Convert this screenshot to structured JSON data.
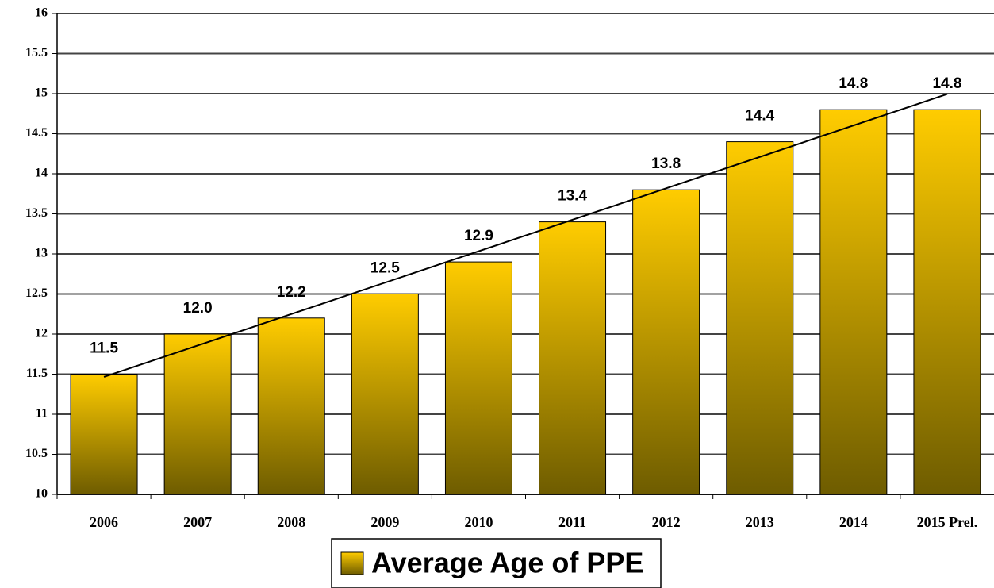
{
  "chart_data": {
    "type": "bar",
    "categories": [
      "2006",
      "2007",
      "2008",
      "2009",
      "2010",
      "2011",
      "2012",
      "2013",
      "2014",
      "2015 Prel."
    ],
    "series": [
      {
        "name": "Average Age of PPE",
        "color": "#ffcc00",
        "values": [
          11.5,
          12.0,
          12.2,
          12.5,
          12.9,
          13.4,
          13.8,
          14.4,
          14.8,
          14.8
        ],
        "value_labels": [
          "11.5",
          "12.0",
          "12.2",
          "12.5",
          "12.9",
          "13.4",
          "13.8",
          "14.4",
          "14.8",
          "14.8"
        ]
      }
    ],
    "ylim": [
      10,
      16
    ],
    "yticks": [
      10,
      10.5,
      11,
      11.5,
      12,
      12.5,
      13,
      13.5,
      14,
      14.5,
      15,
      15.5,
      16
    ],
    "grid": true,
    "trendline": true,
    "legend": "bottom"
  }
}
